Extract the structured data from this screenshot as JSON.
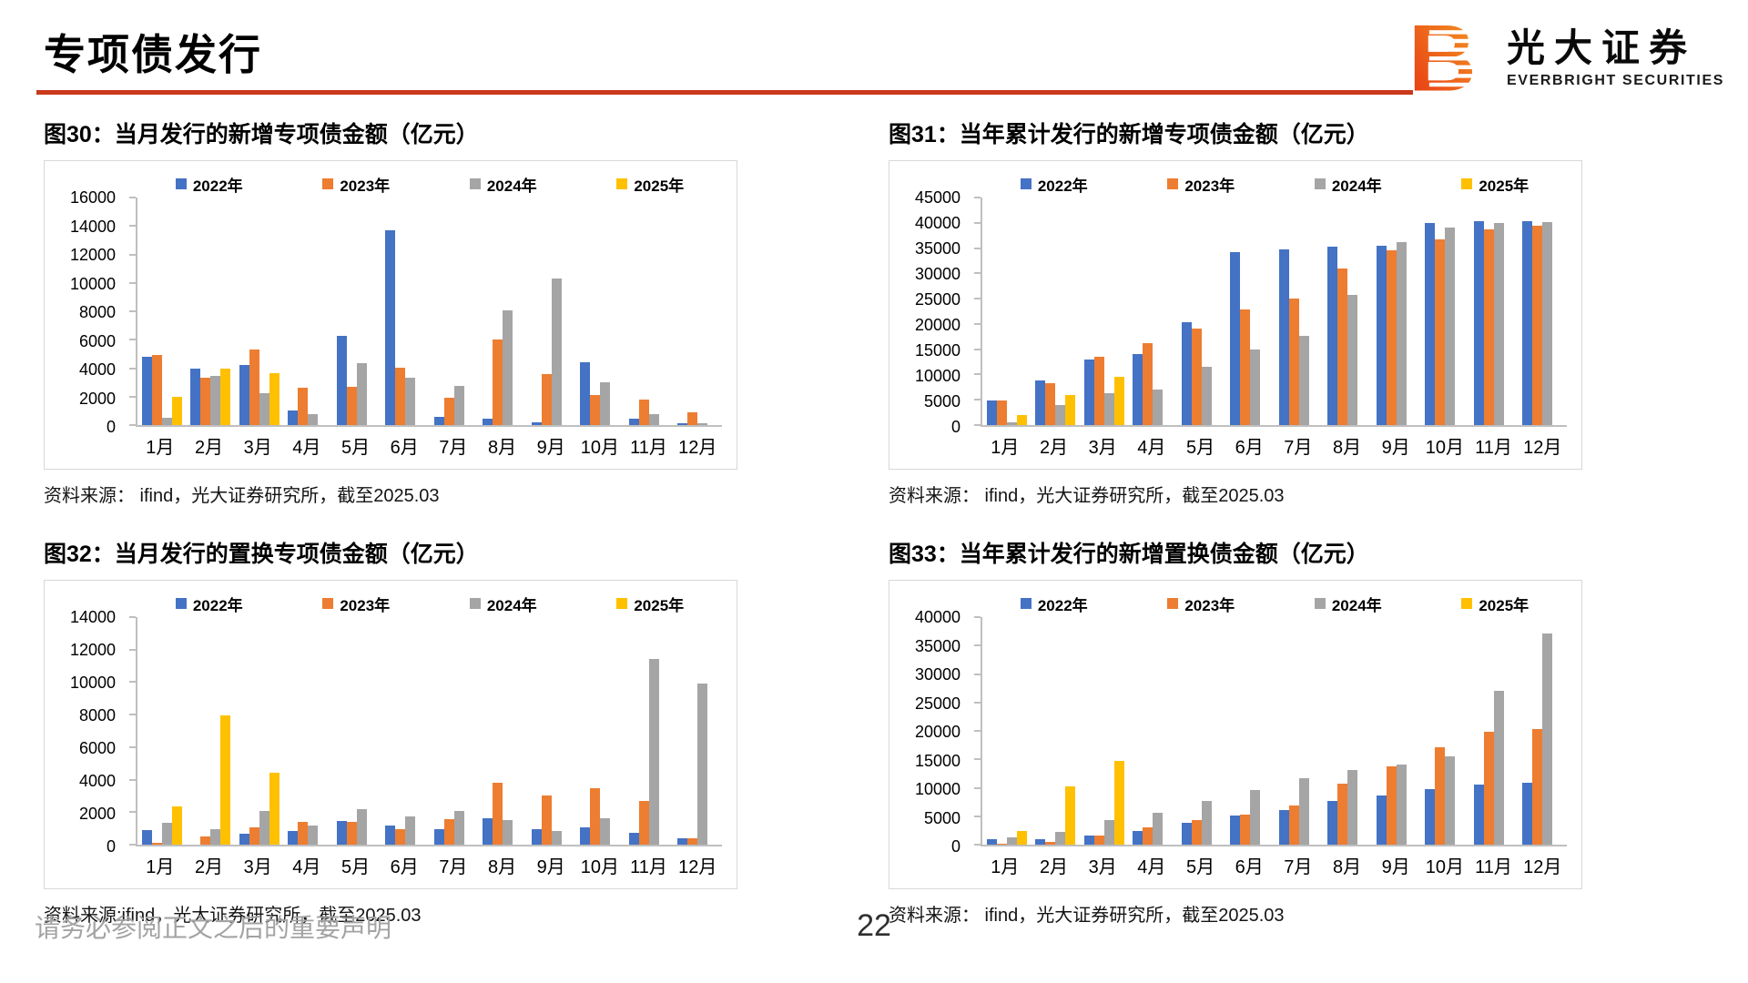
{
  "header": {
    "title": "专项债发行",
    "logo": {
      "brand_cn": "光大证券",
      "brand_en": "EVERBRIGHT SECURITIES",
      "mark_letter": "B"
    }
  },
  "footer": {
    "disclaimer": "请务必参阅正文之后的重要声明",
    "page_number": "22"
  },
  "colors": {
    "accent_rule": "#c9391a",
    "series_2022": "#4472C4",
    "series_2023": "#ED7D31",
    "series_2024": "#A5A5A5",
    "series_2025": "#FFC000",
    "axis": "#bfbfbf",
    "logo_gradient_start": "#e63312",
    "logo_gradient_end": "#f59b23"
  },
  "chart_data": [
    {
      "type": "bar",
      "figure_label": "图30",
      "title": "图30：当月发行的新增专项债金额（亿元）",
      "source": "资料来源： ifind，光大证券研究所，截至2025.03",
      "categories": [
        "1月",
        "2月",
        "3月",
        "4月",
        "5月",
        "6月",
        "7月",
        "8月",
        "9月",
        "10月",
        "11月",
        "12月"
      ],
      "ylim": [
        0,
        16000
      ],
      "ytick_step": 2000,
      "legend_position": "top",
      "grid": false,
      "series": [
        {
          "name": "2022年",
          "color": "#4472C4",
          "values": [
            4800,
            3950,
            4200,
            1000,
            6300,
            13700,
            550,
            450,
            200,
            4400,
            450,
            100
          ]
        },
        {
          "name": "2023年",
          "color": "#ED7D31",
          "values": [
            4900,
            3350,
            5300,
            2600,
            2700,
            4050,
            1950,
            6000,
            3600,
            2100,
            1800,
            900
          ]
        },
        {
          "name": "2024年",
          "color": "#A5A5A5",
          "values": [
            500,
            3450,
            2250,
            800,
            4350,
            3300,
            2750,
            8050,
            10300,
            3000,
            800,
            150
          ]
        },
        {
          "name": "2025年",
          "color": "#FFC000",
          "values": [
            2000,
            3950,
            3650,
            null,
            null,
            null,
            null,
            null,
            null,
            null,
            null,
            null
          ]
        }
      ]
    },
    {
      "type": "bar",
      "figure_label": "图31",
      "title": "图31：当年累计发行的新增专项债金额（亿元）",
      "source": "资料来源： ifind，光大证券研究所，截至2025.03",
      "categories": [
        "1月",
        "2月",
        "3月",
        "4月",
        "5月",
        "6月",
        "7月",
        "8月",
        "9月",
        "10月",
        "11月",
        "12月"
      ],
      "ylim": [
        0,
        45000
      ],
      "ytick_step": 5000,
      "legend_position": "top",
      "grid": false,
      "series": [
        {
          "name": "2022年",
          "color": "#4472C4",
          "values": [
            4800,
            8800,
            12900,
            14000,
            20400,
            34200,
            34700,
            35200,
            35500,
            39900,
            40300,
            40400
          ]
        },
        {
          "name": "2023年",
          "color": "#ED7D31",
          "values": [
            4900,
            8200,
            13500,
            16200,
            19000,
            22800,
            25000,
            31000,
            34600,
            36800,
            38700,
            39500
          ]
        },
        {
          "name": "2024年",
          "color": "#A5A5A5",
          "values": [
            500,
            3900,
            6300,
            7100,
            11500,
            14900,
            17700,
            25700,
            36200,
            39100,
            40000,
            40200
          ]
        },
        {
          "name": "2025年",
          "color": "#FFC000",
          "values": [
            2000,
            5900,
            9600,
            null,
            null,
            null,
            null,
            null,
            null,
            null,
            null,
            null
          ]
        }
      ]
    },
    {
      "type": "bar",
      "figure_label": "图32",
      "title": "图32：当月发行的置换专项债金额（亿元）",
      "source": "资料来源:ifind，光大证券研究所，截至2025.03",
      "categories": [
        "1月",
        "2月",
        "3月",
        "4月",
        "5月",
        "6月",
        "7月",
        "8月",
        "9月",
        "10月",
        "11月",
        "12月"
      ],
      "ylim": [
        0,
        14000
      ],
      "ytick_step": 2000,
      "legend_position": "top",
      "grid": false,
      "series": [
        {
          "name": "2022年",
          "color": "#4472C4",
          "values": [
            900,
            0,
            650,
            850,
            1450,
            1200,
            950,
            1600,
            950,
            1050,
            750,
            400
          ]
        },
        {
          "name": "2023年",
          "color": "#ED7D31",
          "values": [
            100,
            480,
            1050,
            1400,
            1400,
            950,
            1550,
            3800,
            3000,
            3450,
            2700,
            400
          ]
        },
        {
          "name": "2024年",
          "color": "#A5A5A5",
          "values": [
            1350,
            950,
            2050,
            1200,
            2200,
            1750,
            2100,
            1500,
            850,
            1650,
            11400,
            9900
          ]
        },
        {
          "name": "2025年",
          "color": "#FFC000",
          "values": [
            2350,
            7950,
            4400,
            null,
            null,
            null,
            null,
            null,
            null,
            null,
            null,
            null
          ]
        }
      ]
    },
    {
      "type": "bar",
      "figure_label": "图33",
      "title": "图33：当年累计发行的新增置换债金额（亿元）",
      "source": "资料来源： ifind，光大证券研究所，截至2025.03",
      "categories": [
        "1月",
        "2月",
        "3月",
        "4月",
        "5月",
        "6月",
        "7月",
        "8月",
        "9月",
        "10月",
        "11月",
        "12月"
      ],
      "ylim": [
        0,
        40000
      ],
      "ytick_step": 5000,
      "legend_position": "top",
      "grid": false,
      "series": [
        {
          "name": "2022年",
          "color": "#4472C4",
          "values": [
            900,
            950,
            1600,
            2450,
            3900,
            5100,
            6050,
            7750,
            8700,
            9750,
            10500,
            10900
          ]
        },
        {
          "name": "2023年",
          "color": "#ED7D31",
          "values": [
            100,
            550,
            1600,
            3000,
            4400,
            5350,
            6850,
            10650,
            13700,
            17200,
            19800,
            20300
          ]
        },
        {
          "name": "2024年",
          "color": "#A5A5A5",
          "values": [
            1350,
            2300,
            4350,
            5550,
            7750,
            9550,
            11650,
            13150,
            14050,
            15600,
            27100,
            37200
          ]
        },
        {
          "name": "2025年",
          "color": "#FFC000",
          "values": [
            2350,
            10300,
            14700,
            null,
            null,
            null,
            null,
            null,
            null,
            null,
            null,
            null
          ]
        }
      ]
    }
  ]
}
